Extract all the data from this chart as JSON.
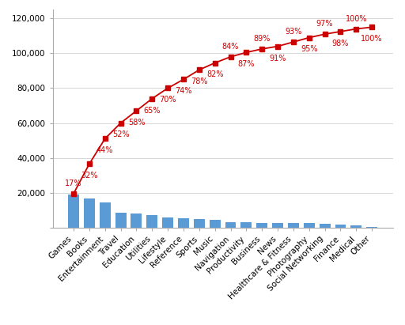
{
  "categories": [
    "Games",
    "Books",
    "Entertainment",
    "Travel",
    "Education",
    "Utilities",
    "Lifestyle",
    "Reference",
    "Sports",
    "Music",
    "Navigation",
    "Productivity",
    "Business",
    "News",
    "Healthcare & Fitness",
    "Photography",
    "Social Networking",
    "Finance",
    "Medical",
    "Other"
  ],
  "bar_values": [
    19000,
    16500,
    14500,
    8500,
    8000,
    7000,
    5800,
    5200,
    4800,
    4600,
    3200,
    3100,
    2800,
    2700,
    2600,
    2400,
    2100,
    1800,
    1200,
    300
  ],
  "line_values": [
    19500,
    36500,
    51000,
    60000,
    67000,
    74000,
    80000,
    85000,
    90500,
    94500,
    98000,
    100500,
    102500,
    104000,
    106500,
    109000,
    111000,
    112500,
    114000,
    115000
  ],
  "percentages": [
    "17%",
    "32%",
    "44%",
    "52%",
    "58%",
    "65%",
    "70%",
    "74%",
    "78%",
    "82%",
    "84%",
    "87%",
    "89%",
    "91%",
    "93%",
    "95%",
    "97%",
    "98%",
    "100%",
    "100%"
  ],
  "pct_above": [
    true,
    false,
    false,
    false,
    false,
    false,
    false,
    false,
    false,
    false,
    true,
    false,
    true,
    false,
    true,
    false,
    true,
    false,
    true,
    false
  ],
  "bar_color": "#5B9BD5",
  "line_color": "#CC0000",
  "marker_color": "#CC0000",
  "ylim": [
    0,
    125000
  ],
  "yticks": [
    0,
    20000,
    40000,
    60000,
    80000,
    100000,
    120000
  ],
  "ytick_labels": [
    "",
    "20,000",
    "40,000",
    "60,000",
    "80,000",
    "100,000",
    "120,000"
  ],
  "pct_fontsize": 7.0,
  "label_fontsize": 7.5,
  "tick_fontsize": 7.5,
  "background_color": "#ffffff"
}
